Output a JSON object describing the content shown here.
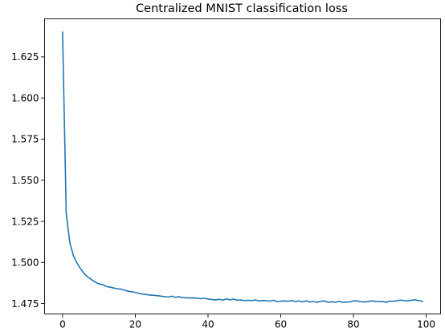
{
  "chart_data": {
    "type": "line",
    "title": "Centralized MNIST classification loss",
    "xlabel": "",
    "ylabel": "",
    "xlim": [
      -4.95,
      103.95
    ],
    "ylim": [
      1.4687,
      1.6481
    ],
    "grid": false,
    "legend": "none",
    "x_ticks": [
      0,
      20,
      40,
      60,
      80,
      100
    ],
    "x_tick_labels": [
      "0",
      "20",
      "40",
      "60",
      "80",
      "100"
    ],
    "y_ticks": [
      1.475,
      1.5,
      1.525,
      1.55,
      1.575,
      1.6,
      1.625
    ],
    "y_tick_labels": [
      "1.475",
      "1.500",
      "1.525",
      "1.550",
      "1.575",
      "1.600",
      "1.625"
    ],
    "series": [
      {
        "color": "#1f77b4",
        "x": [
          0,
          1,
          2,
          3,
          4,
          5,
          6,
          7,
          8,
          9,
          10,
          11,
          12,
          13,
          14,
          15,
          16,
          17,
          18,
          19,
          20,
          21,
          22,
          23,
          24,
          25,
          26,
          27,
          28,
          29,
          30,
          31,
          32,
          33,
          34,
          35,
          36,
          37,
          38,
          39,
          40,
          41,
          42,
          43,
          44,
          45,
          46,
          47,
          48,
          49,
          50,
          51,
          52,
          53,
          54,
          55,
          56,
          57,
          58,
          59,
          60,
          61,
          62,
          63,
          64,
          65,
          66,
          67,
          68,
          69,
          70,
          71,
          72,
          73,
          74,
          75,
          76,
          77,
          78,
          79,
          80,
          81,
          82,
          83,
          84,
          85,
          86,
          87,
          88,
          89,
          90,
          91,
          92,
          93,
          94,
          95,
          96,
          97,
          98,
          99
        ],
        "values": [
          1.64,
          1.53,
          1.512,
          1.504,
          1.4995,
          1.496,
          1.493,
          1.491,
          1.4895,
          1.488,
          1.487,
          1.4865,
          1.4855,
          1.485,
          1.4845,
          1.484,
          1.4838,
          1.4832,
          1.4825,
          1.4822,
          1.4818,
          1.4812,
          1.4808,
          1.4805,
          1.4802,
          1.48,
          1.4798,
          1.4795,
          1.4792,
          1.479,
          1.4795,
          1.4788,
          1.4792,
          1.4786,
          1.4785,
          1.4784,
          1.4785,
          1.4783,
          1.478,
          1.4782,
          1.4778,
          1.4775,
          1.4772,
          1.4776,
          1.4771,
          1.4778,
          1.4773,
          1.4777,
          1.477,
          1.4772,
          1.4768,
          1.477,
          1.4768,
          1.4772,
          1.4766,
          1.4769,
          1.4768,
          1.4765,
          1.477,
          1.4762,
          1.4765,
          1.4766,
          1.4764,
          1.4768,
          1.4763,
          1.4766,
          1.476,
          1.4767,
          1.476,
          1.4762,
          1.4758,
          1.4764,
          1.4766,
          1.4758,
          1.4761,
          1.4758,
          1.4764,
          1.4758,
          1.4759,
          1.476,
          1.4767,
          1.4766,
          1.4762,
          1.476,
          1.4763,
          1.4766,
          1.4764,
          1.4762,
          1.4763,
          1.4758,
          1.4765,
          1.4764,
          1.4768,
          1.4771,
          1.4768,
          1.4766,
          1.4771,
          1.4773,
          1.4768,
          1.4764
        ]
      }
    ]
  }
}
